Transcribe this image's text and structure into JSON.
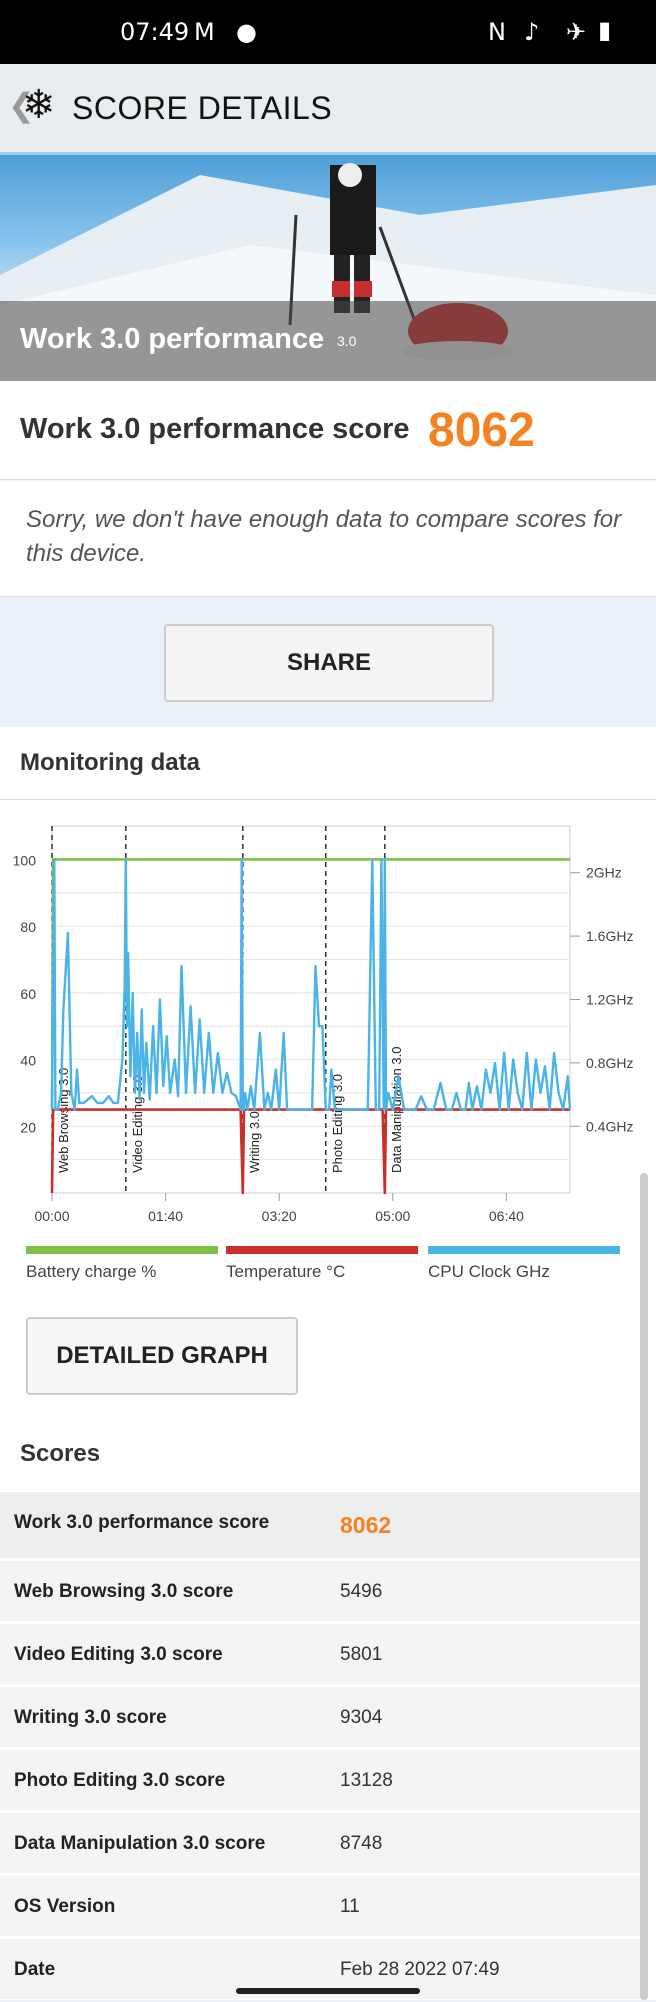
{
  "status": {
    "time": "07:49"
  },
  "appbar": {
    "title": "SCORE DETAILS"
  },
  "hero": {
    "title": "Work 3.0 performance",
    "version": "3.0"
  },
  "score": {
    "label": "Work 3.0 performance score",
    "value": "8062"
  },
  "sorry": "Sorry, we don't have enough data to compare scores for this device.",
  "share_label": "SHARE",
  "monitoring": {
    "title": "Monitoring data"
  },
  "chart_data": {
    "type": "line",
    "y_left_ticks": [
      "100",
      "80",
      "60",
      "40",
      "20"
    ],
    "y_right_ticks": [
      "2GHz",
      "1.6GHz",
      "1.2GHz",
      "0.8GHz",
      "0.4GHz"
    ],
    "x_ticks": [
      "00:00",
      "01:40",
      "03:20",
      "05:00",
      "06:40"
    ],
    "ylim": [
      0,
      110
    ],
    "sections": [
      {
        "name": "Web Browsing 3.0",
        "t": 0
      },
      {
        "name": "Video Editing 3.0",
        "t": 65
      },
      {
        "name": "Writing 3.0",
        "t": 168
      },
      {
        "name": "Photo Editing 3.0",
        "t": 241
      },
      {
        "name": "Data Manipulation 3.0",
        "t": 293
      }
    ],
    "duration": 456,
    "series": [
      {
        "name": "Battery charge %",
        "color": "#7dc242",
        "x": [
          0,
          1,
          2,
          456
        ],
        "y": [
          25,
          100,
          100,
          100
        ]
      },
      {
        "name": "Temperature °C",
        "color": "#c9302c",
        "x": [
          0,
          1,
          2,
          166,
          168,
          169,
          171,
          291,
          293,
          294,
          296,
          456
        ],
        "y": [
          0,
          25,
          25,
          25,
          0,
          25,
          25,
          25,
          0,
          25,
          25,
          25
        ]
      },
      {
        "name": "CPU Clock GHz",
        "color": "#4ab4e6",
        "x": [
          0,
          2,
          3,
          5,
          8,
          10,
          14,
          17,
          20,
          22,
          24,
          28,
          35,
          40,
          45,
          50,
          54,
          58,
          62,
          64,
          65,
          66,
          67,
          69,
          71,
          73,
          75,
          77,
          79,
          81,
          83,
          86,
          89,
          92,
          95,
          98,
          101,
          104,
          108,
          111,
          114,
          118,
          122,
          126,
          130,
          134,
          138,
          142,
          146,
          150,
          154,
          158,
          162,
          166,
          167,
          168,
          169,
          170,
          172,
          175,
          178,
          183,
          187,
          190,
          193,
          197,
          200,
          204,
          207,
          212,
          217,
          224,
          229,
          232,
          235,
          238,
          241,
          244,
          246,
          249,
          253,
          262,
          270,
          278,
          282,
          285,
          288,
          290,
          292,
          293,
          294,
          296,
          300,
          305,
          310,
          315,
          320,
          325,
          330,
          336,
          342,
          347,
          352,
          356,
          360,
          364,
          367,
          370,
          374,
          378,
          382,
          386,
          390,
          394,
          398,
          402,
          406,
          410,
          414,
          418,
          422,
          426,
          430,
          434,
          438,
          442,
          446,
          450,
          454,
          456
        ],
        "y": [
          25,
          100,
          25,
          25,
          30,
          55,
          78,
          30,
          25,
          37,
          27,
          27,
          29,
          27,
          27,
          29,
          27,
          27,
          40,
          62,
          100,
          50,
          72,
          35,
          60,
          30,
          48,
          28,
          55,
          30,
          45,
          28,
          50,
          30,
          58,
          32,
          47,
          30,
          40,
          29,
          68,
          30,
          56,
          30,
          52,
          30,
          48,
          30,
          42,
          30,
          36,
          30,
          29,
          25,
          100,
          25,
          25,
          30,
          25,
          32,
          25,
          48,
          25,
          30,
          25,
          37,
          25,
          48,
          25,
          25,
          25,
          25,
          25,
          68,
          50,
          50,
          25,
          25,
          37,
          25,
          25,
          25,
          25,
          25,
          100,
          25,
          25,
          100,
          25,
          100,
          25,
          30,
          25,
          35,
          25,
          25,
          25,
          29,
          25,
          25,
          33,
          25,
          25,
          30,
          25,
          25,
          33,
          25,
          32,
          25,
          37,
          30,
          39,
          25,
          42,
          25,
          40,
          30,
          25,
          42,
          25,
          40,
          30,
          38,
          25,
          42,
          30,
          25,
          35,
          25
        ]
      }
    ]
  },
  "detailed_label": "DETAILED GRAPH",
  "scores": {
    "title": "Scores",
    "rows": [
      {
        "k": "Work 3.0 performance score",
        "v": "8062"
      },
      {
        "k": "Web Browsing 3.0 score",
        "v": "5496"
      },
      {
        "k": "Video Editing 3.0 score",
        "v": "5801"
      },
      {
        "k": "Writing 3.0 score",
        "v": "9304"
      },
      {
        "k": "Photo Editing 3.0 score",
        "v": "13128"
      },
      {
        "k": "Data Manipulation 3.0 score",
        "v": "8748"
      },
      {
        "k": "OS Version",
        "v": "11"
      },
      {
        "k": "Date",
        "v": "Feb 28 2022 07:49"
      }
    ]
  }
}
